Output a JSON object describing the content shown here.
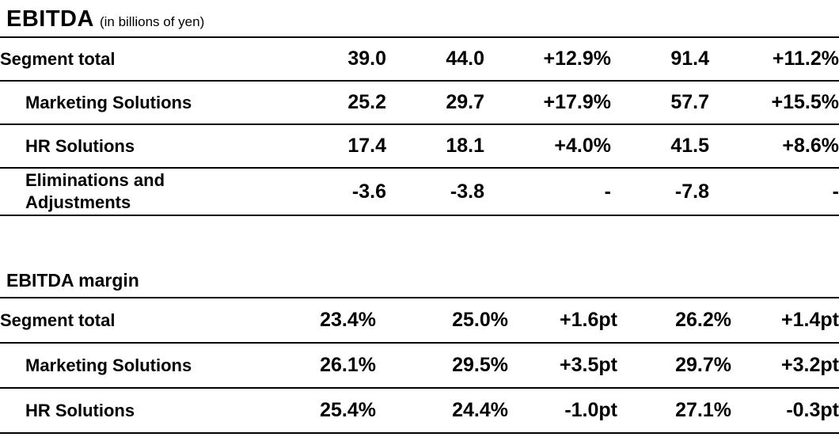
{
  "title": {
    "text": "EBITDA",
    "unit": "(in billions of yen)"
  },
  "ebitda_table": {
    "rows": [
      {
        "label": "Segment total",
        "values": [
          "39.0",
          "44.0",
          "+12.9%",
          "91.4",
          "+11.2%"
        ]
      },
      {
        "label": "Marketing Solutions",
        "values": [
          "25.2",
          "29.7",
          "+17.9%",
          "57.7",
          "+15.5%"
        ]
      },
      {
        "label": "HR Solutions",
        "values": [
          "17.4",
          "18.1",
          "+4.0%",
          "41.5",
          "+8.6%"
        ]
      },
      {
        "label": "Eliminations and Adjustments",
        "values": [
          "-3.6",
          "-3.8",
          "-",
          "-7.8",
          "-"
        ]
      }
    ]
  },
  "margin_table": {
    "heading": "EBITDA margin",
    "rows": [
      {
        "label": "Segment total",
        "values": [
          "23.4%",
          "25.0%",
          "+1.6pt",
          "26.2%",
          "+1.4pt"
        ]
      },
      {
        "label": "Marketing Solutions",
        "values": [
          "26.1%",
          "29.5%",
          "+3.5pt",
          "29.7%",
          "+3.2pt"
        ]
      },
      {
        "label": "HR Solutions",
        "values": [
          "25.4%",
          "24.4%",
          "-1.0pt",
          "27.1%",
          "-0.3pt"
        ]
      }
    ]
  },
  "colors": {
    "text": "#000000",
    "background": "#ffffff",
    "rule_line": "#000000"
  },
  "chart_data": [
    {
      "type": "table",
      "title": "EBITDA (in billions of yen)",
      "rows": [
        [
          "Segment total",
          "39.0",
          "44.0",
          "+12.9%",
          "91.4",
          "+11.2%"
        ],
        [
          "Marketing Solutions",
          "25.2",
          "29.7",
          "+17.9%",
          "57.7",
          "+15.5%"
        ],
        [
          "HR Solutions",
          "17.4",
          "18.1",
          "+4.0%",
          "41.5",
          "+8.6%"
        ],
        [
          "Eliminations and Adjustments",
          "-3.6",
          "-3.8",
          "-",
          "-7.8",
          "-"
        ]
      ]
    },
    {
      "type": "table",
      "title": "EBITDA margin",
      "rows": [
        [
          "Segment total",
          "23.4%",
          "25.0%",
          "+1.6pt",
          "26.2%",
          "+1.4pt"
        ],
        [
          "Marketing Solutions",
          "26.1%",
          "29.5%",
          "+3.5pt",
          "29.7%",
          "+3.2pt"
        ],
        [
          "HR Solutions",
          "25.4%",
          "24.4%",
          "-1.0pt",
          "27.1%",
          "-0.3pt"
        ]
      ]
    }
  ]
}
